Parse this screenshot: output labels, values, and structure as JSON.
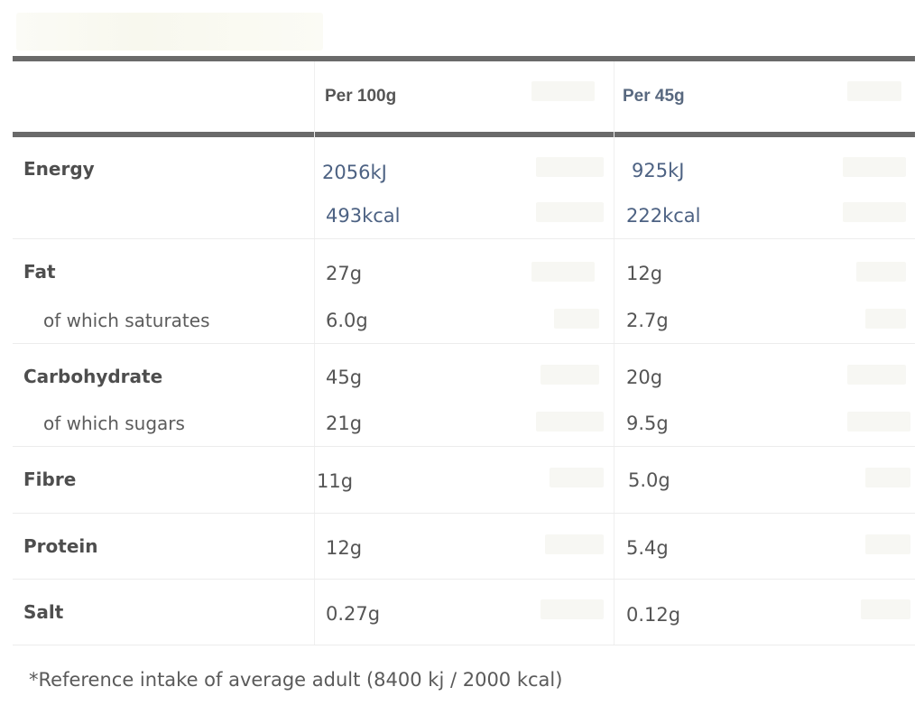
{
  "table": {
    "header": {
      "col1": "Per 100g",
      "col2": "Per 45g"
    },
    "rows": [
      {
        "label": "Energy",
        "v100": "2056kJ",
        "v45": "925kJ"
      },
      {
        "label": "",
        "v100": "493kcal",
        "v45": "222kcal"
      },
      {
        "label": "Fat",
        "v100": "27g",
        "v45": "12g"
      },
      {
        "label": "of which saturates",
        "v100": "6.0g",
        "v45": "2.7g"
      },
      {
        "label": "Carbohydrate",
        "v100": "45g",
        "v45": "20g"
      },
      {
        "label": "of which sugars",
        "v100": "21g",
        "v45": "9.5g"
      },
      {
        "label": "Fibre",
        "v100": "11g",
        "v45": "5.0g"
      },
      {
        "label": "Protein",
        "v100": "12g",
        "v45": "5.4g"
      },
      {
        "label": "Salt",
        "v100": "0.27g",
        "v45": "0.12g"
      }
    ]
  },
  "footnote": "*Reference intake of average adult (8400 kj / 2000 kcal)"
}
